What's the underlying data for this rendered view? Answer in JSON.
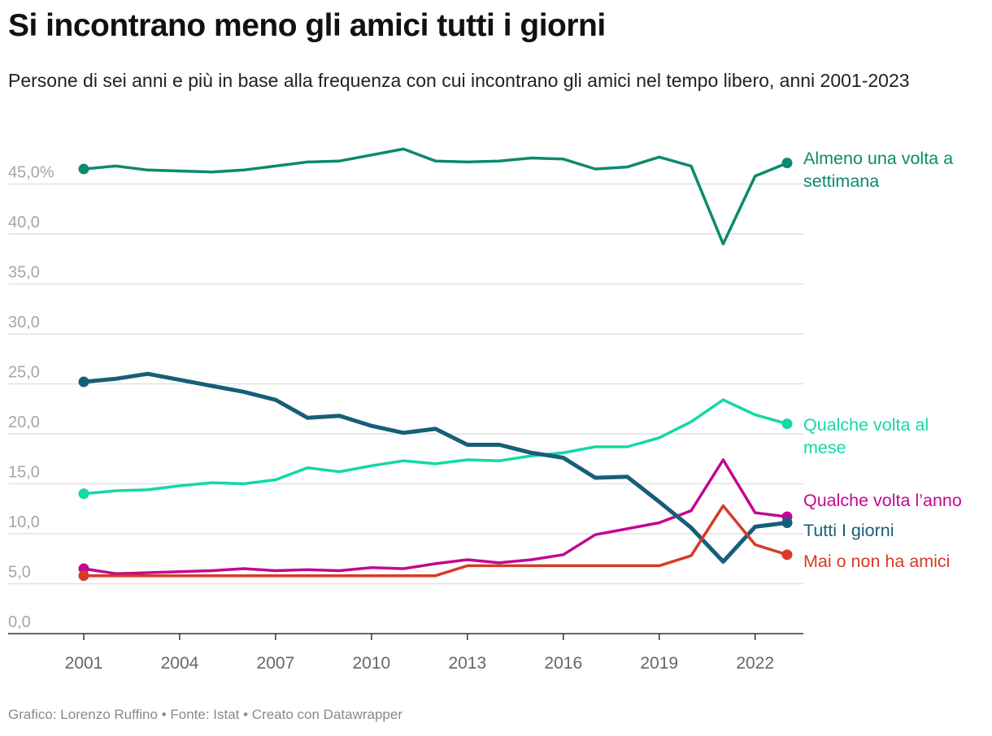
{
  "header": {
    "title": "Si incontrano meno gli amici tutti i giorni",
    "subtitle": "Persone di sei anni e più in base alla frequenza con cui incontrano gli amici nel tempo libero, anni 2001-2023"
  },
  "footer": {
    "text": "Grafico: Lorenzo Ruffino • Fonte: Istat • Creato con Datawrapper"
  },
  "chart_data": {
    "type": "line",
    "title": "Si incontrano meno gli amici tutti i giorni",
    "subtitle": "Persone di sei anni e più in base alla frequenza con cui incontrano gli amici nel tempo libero, anni 2001-2023",
    "xlabel": "",
    "ylabel": "",
    "xlim": [
      2001,
      2023
    ],
    "ylim": [
      0,
      48
    ],
    "grid": true,
    "legend": "line-end labels",
    "x": [
      2001,
      2002,
      2003,
      2004,
      2005,
      2006,
      2007,
      2008,
      2009,
      2010,
      2011,
      2012,
      2013,
      2014,
      2015,
      2016,
      2017,
      2018,
      2019,
      2020,
      2021,
      2022,
      2023
    ],
    "xticks": [
      2001,
      2004,
      2007,
      2010,
      2013,
      2016,
      2019,
      2022
    ],
    "xtick_labels": [
      "2001",
      "2004",
      "2007",
      "2010",
      "2013",
      "2016",
      "2019",
      "2022"
    ],
    "yticks": [
      0,
      5,
      10,
      15,
      20,
      25,
      30,
      35,
      40,
      45
    ],
    "ytick_labels": [
      "0,0",
      "5,0",
      "10,0",
      "15,0",
      "20,0",
      "25,0",
      "30,0",
      "35,0",
      "40,0",
      "45,0%"
    ],
    "series": [
      {
        "name": "Almeno una volta a settimana",
        "label_lines": [
          "Almeno una volta a",
          "settimana"
        ],
        "color": "#0b8a6e",
        "width": 3.5,
        "values": [
          46.5,
          46.8,
          46.4,
          46.3,
          46.2,
          46.4,
          46.8,
          47.2,
          47.3,
          47.9,
          48.5,
          47.3,
          47.2,
          47.3,
          47.6,
          47.5,
          46.5,
          46.7,
          47.7,
          46.8,
          39.0,
          45.8,
          47.1
        ]
      },
      {
        "name": "Qualche volta al mese",
        "label_lines": [
          "Qualche volta al",
          "mese"
        ],
        "color": "#12d9a6",
        "width": 3.5,
        "values": [
          14.0,
          14.3,
          14.4,
          14.8,
          15.1,
          15.0,
          15.4,
          16.6,
          16.2,
          16.8,
          17.3,
          17.0,
          17.4,
          17.3,
          17.8,
          18.1,
          18.7,
          18.7,
          19.6,
          21.2,
          23.4,
          21.9,
          21.0
        ]
      },
      {
        "name": "Qualche volta l’anno",
        "label_lines": [
          "Qualche volta l’anno"
        ],
        "color": "#c20891",
        "width": 3.5,
        "values": [
          6.5,
          6.0,
          6.1,
          6.2,
          6.3,
          6.5,
          6.3,
          6.4,
          6.3,
          6.6,
          6.5,
          7.0,
          7.4,
          7.1,
          7.4,
          7.9,
          9.9,
          10.5,
          11.1,
          12.3,
          17.4,
          12.1,
          11.7
        ]
      },
      {
        "name": "Tutti I giorni",
        "label_lines": [
          "Tutti I giorni"
        ],
        "color": "#175e78",
        "width": 5,
        "values": [
          25.2,
          25.5,
          26.0,
          25.4,
          24.8,
          24.2,
          23.4,
          21.6,
          21.8,
          20.8,
          20.1,
          20.5,
          18.9,
          18.9,
          18.1,
          17.6,
          15.6,
          15.7,
          13.2,
          10.6,
          7.2,
          10.7,
          11.1
        ]
      },
      {
        "name": "Mai o non ha amici",
        "label_lines": [
          "Mai o non ha amici"
        ],
        "color": "#d83a26",
        "width": 3.5,
        "values": [
          5.8,
          5.8,
          5.8,
          5.8,
          5.8,
          5.8,
          5.8,
          5.8,
          5.8,
          5.8,
          5.8,
          5.8,
          6.8,
          6.8,
          6.8,
          6.8,
          6.8,
          6.8,
          6.8,
          7.8,
          12.8,
          8.9,
          7.9
        ]
      }
    ]
  }
}
